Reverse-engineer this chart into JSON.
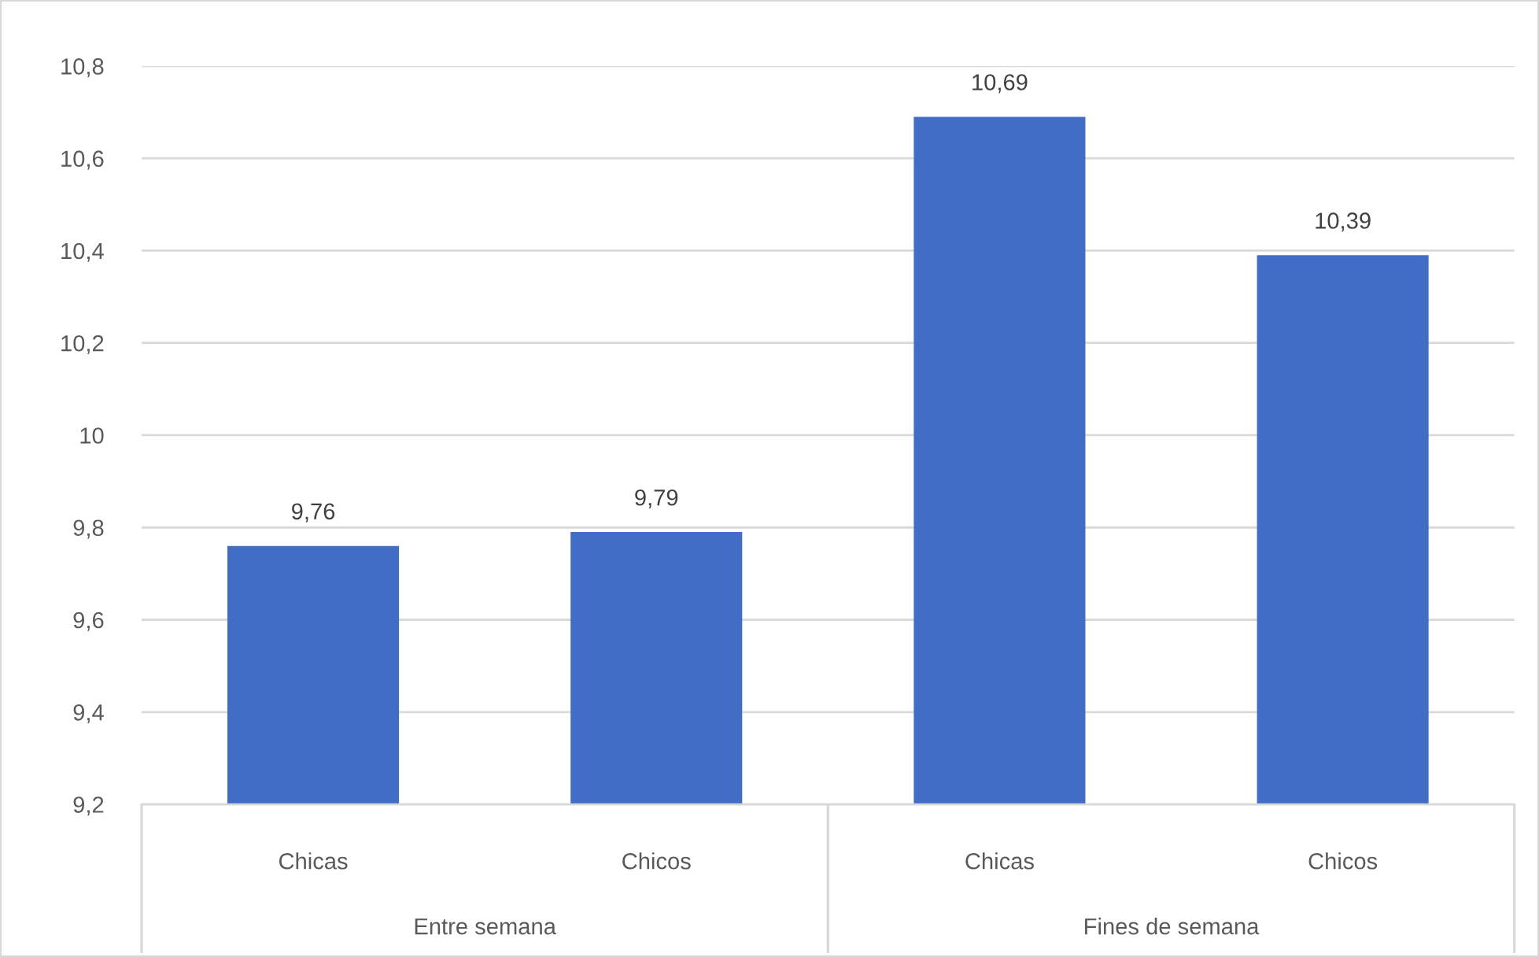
{
  "chart_data": {
    "type": "bar",
    "categories": [
      "Chicas",
      "Chicos",
      "Chicas",
      "Chicos"
    ],
    "values": [
      9.76,
      9.79,
      10.69,
      10.39
    ],
    "value_labels": [
      "9,76",
      "9,79",
      "10,69",
      "10,39"
    ],
    "color": "#416dc6",
    "ylim": [
      9.2,
      10.8
    ],
    "yticks": [
      {
        "value": 9.2,
        "label": "9,2"
      },
      {
        "value": 9.4,
        "label": "9,4"
      },
      {
        "value": 9.6,
        "label": "9,6"
      },
      {
        "value": 9.8,
        "label": "9,8"
      },
      10,
      {
        "value": 10.2,
        "label": "10,2"
      },
      {
        "value": 10.4,
        "label": "10,4"
      },
      {
        "value": 10.6,
        "label": "10,6"
      },
      {
        "value": 10.8,
        "label": "10,8"
      }
    ],
    "grid": "y",
    "annotations": [
      "Entre semana",
      "Fines de semana"
    ]
  }
}
